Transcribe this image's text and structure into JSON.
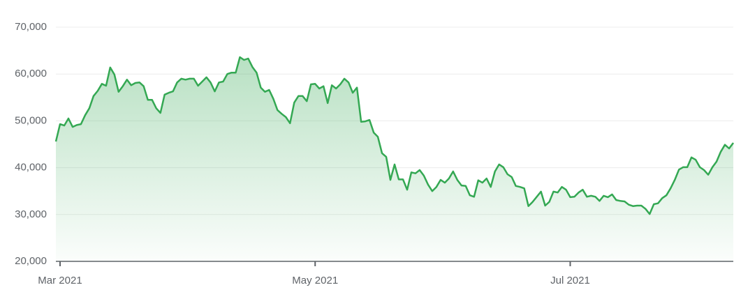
{
  "chart_data": {
    "type": "area-line",
    "color": "#34a853",
    "categories": [
      null,
      "Mar 2021",
      null,
      null,
      null,
      null,
      null,
      null,
      null,
      null,
      null,
      null,
      null,
      null,
      null,
      null,
      null,
      null,
      null,
      null,
      null,
      null,
      null,
      null,
      null,
      null,
      null,
      null,
      null,
      null,
      null,
      null,
      null,
      null,
      null,
      null,
      null,
      null,
      null,
      null,
      null,
      null,
      null,
      null,
      null,
      null,
      null,
      null,
      null,
      null,
      null,
      null,
      null,
      null,
      null,
      null,
      null,
      null,
      null,
      null,
      null,
      null,
      "May 2021",
      null,
      null,
      null,
      null,
      null,
      null,
      null,
      null,
      null,
      null,
      null,
      null,
      null,
      null,
      null,
      null,
      null,
      null,
      null,
      null,
      null,
      null,
      null,
      null,
      null,
      null,
      null,
      null,
      null,
      null,
      null,
      null,
      null,
      null,
      null,
      null,
      null,
      null,
      null,
      null,
      null,
      null,
      null,
      null,
      null,
      null,
      null,
      null,
      null,
      null,
      null,
      null,
      null,
      null,
      null,
      null,
      null,
      null,
      null,
      null,
      "Jul 2021",
      null,
      null,
      null,
      null,
      null,
      null,
      null,
      null,
      null,
      null,
      null,
      null,
      null,
      null,
      null,
      null,
      null,
      null,
      null,
      null,
      null,
      null,
      null,
      null,
      null,
      null,
      null,
      null,
      null,
      null,
      null,
      null,
      null,
      null,
      null,
      null,
      null,
      null,
      null
    ],
    "values": [
      45600,
      49300,
      49000,
      50500,
      48700,
      49100,
      49300,
      51200,
      52700,
      55300,
      56400,
      57900,
      57500,
      61400,
      59900,
      56200,
      57400,
      58800,
      57600,
      58100,
      58200,
      57400,
      54500,
      54500,
      52700,
      51700,
      55600,
      56000,
      56300,
      58200,
      59000,
      58800,
      59000,
      59000,
      57500,
      58400,
      59300,
      58200,
      56300,
      58200,
      58400,
      60000,
      60300,
      60300,
      63600,
      63000,
      63300,
      61500,
      60300,
      57100,
      56200,
      56600,
      54700,
      52300,
      51500,
      50800,
      49500,
      53900,
      55300,
      55300,
      54200,
      57800,
      57900,
      56900,
      57400,
      53800,
      57600,
      56900,
      57800,
      59000,
      58200,
      56000,
      57100,
      49800,
      49900,
      50200,
      47500,
      46600,
      43100,
      42300,
      37400,
      40700,
      37500,
      37500,
      35300,
      39000,
      38800,
      39500,
      38300,
      36400,
      35000,
      35900,
      37400,
      36800,
      37700,
      39200,
      37400,
      36200,
      36100,
      34100,
      33800,
      37300,
      36800,
      37700,
      35900,
      39200,
      40700,
      40100,
      38600,
      38000,
      36100,
      35900,
      35600,
      31800,
      32700,
      33800,
      34900,
      31900,
      32700,
      34900,
      34700,
      35900,
      35300,
      33700,
      33800,
      34700,
      35300,
      33800,
      34000,
      33800,
      32900,
      34000,
      33700,
      34300,
      33100,
      32900,
      32800,
      32100,
      31800,
      31900,
      31900,
      31200,
      30100,
      32200,
      32400,
      33500,
      34100,
      35600,
      37400,
      39600,
      40100,
      40100,
      42200,
      41700,
      40100,
      39500,
      38500,
      40100,
      41300,
      43400,
      44900,
      44100,
      45300
    ],
    "ylim": [
      20000,
      70000
    ],
    "yticks": [
      {
        "value": 20000,
        "label": "20,000"
      },
      {
        "value": 30000,
        "label": "30,000"
      },
      {
        "value": 40000,
        "label": "40,000"
      },
      {
        "value": 50000,
        "label": "50,000"
      },
      {
        "value": 60000,
        "label": "60,000"
      },
      {
        "value": 70000,
        "label": "70,000"
      }
    ],
    "grid": true
  }
}
